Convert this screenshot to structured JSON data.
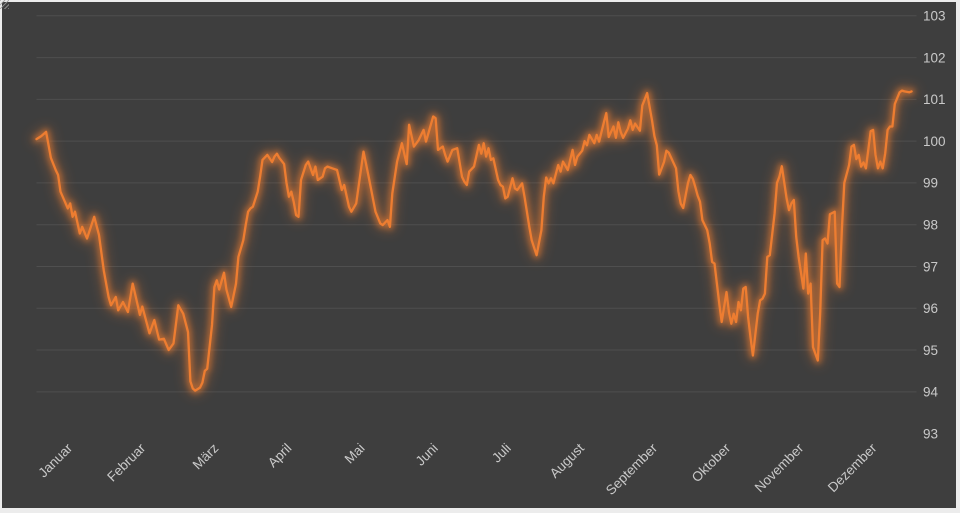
{
  "window": {
    "bezel_color": "#ECECEC",
    "background": "#3E3E3E"
  },
  "style": {
    "gridline_color": "rgba(255,255,255,0.09)",
    "axis_text_color": "#C9C9C9",
    "axis_font_size": 13.5,
    "line_color": "#ED7D31",
    "glow_color": "#ED7D31"
  },
  "chart_data": {
    "type": "line",
    "title": "",
    "legend": false,
    "grid": true,
    "x_axis": {
      "categories": [
        "Januar",
        "Februar",
        "März",
        "April",
        "Mai",
        "Juni",
        "Juli",
        "August",
        "September",
        "Oktober",
        "November",
        "Dezember"
      ],
      "label_rotation_deg": -45
    },
    "y_axis": {
      "side": "right",
      "min": 93,
      "max": 103,
      "tick_step": 1,
      "tick_labels": [
        "93",
        "94",
        "95",
        "96",
        "97",
        "98",
        "99",
        "100",
        "101",
        "102",
        "103"
      ],
      "gridlines_at": [
        94,
        95,
        96,
        97,
        98,
        99,
        100,
        101,
        102,
        103
      ]
    },
    "x_unit": "day_of_year (0-364, Jan 1 = 0)",
    "series": [
      {
        "name": "",
        "color": "#ED7D31",
        "glow": true,
        "points": [
          [
            0,
            100.05
          ],
          [
            2,
            100.12
          ],
          [
            4,
            100.22
          ],
          [
            6,
            99.6
          ],
          [
            8,
            99.31
          ],
          [
            9,
            99.19
          ],
          [
            10,
            98.79
          ],
          [
            13,
            98.39
          ],
          [
            14,
            98.51
          ],
          [
            15,
            98.19
          ],
          [
            16,
            98.31
          ],
          [
            18,
            97.79
          ],
          [
            19,
            97.95
          ],
          [
            21,
            97.67
          ],
          [
            24,
            98.19
          ],
          [
            26,
            97.75
          ],
          [
            28,
            96.9
          ],
          [
            30,
            96.27
          ],
          [
            31,
            96.07
          ],
          [
            33,
            96.27
          ],
          [
            34,
            95.95
          ],
          [
            36,
            96.15
          ],
          [
            38,
            95.91
          ],
          [
            40,
            96.59
          ],
          [
            43,
            95.84
          ],
          [
            44,
            96.04
          ],
          [
            47,
            95.4
          ],
          [
            49,
            95.72
          ],
          [
            51,
            95.25
          ],
          [
            53,
            95.27
          ],
          [
            55,
            95.0
          ],
          [
            57,
            95.16
          ],
          [
            59,
            96.07
          ],
          [
            61,
            95.87
          ],
          [
            63,
            95.43
          ],
          [
            64,
            94.25
          ],
          [
            65,
            94.08
          ],
          [
            66,
            94.03
          ],
          [
            68,
            94.1
          ],
          [
            69,
            94.22
          ],
          [
            70,
            94.5
          ],
          [
            71,
            94.55
          ],
          [
            73,
            95.6
          ],
          [
            74,
            96.51
          ],
          [
            75,
            96.67
          ],
          [
            76,
            96.45
          ],
          [
            78,
            96.85
          ],
          [
            79,
            96.45
          ],
          [
            81,
            96.03
          ],
          [
            83,
            96.59
          ],
          [
            84,
            97.23
          ],
          [
            86,
            97.63
          ],
          [
            87,
            97.99
          ],
          [
            88,
            98.31
          ],
          [
            89,
            98.39
          ],
          [
            90,
            98.43
          ],
          [
            92,
            98.79
          ],
          [
            93,
            99.15
          ],
          [
            94,
            99.55
          ],
          [
            96,
            99.67
          ],
          [
            98,
            99.5
          ],
          [
            99,
            99.63
          ],
          [
            100,
            99.7
          ],
          [
            101,
            99.6
          ],
          [
            103,
            99.45
          ],
          [
            104,
            99.0
          ],
          [
            105,
            98.67
          ],
          [
            106,
            98.79
          ],
          [
            107,
            98.55
          ],
          [
            108,
            98.23
          ],
          [
            109,
            98.19
          ],
          [
            110,
            99.07
          ],
          [
            112,
            99.43
          ],
          [
            113,
            99.51
          ],
          [
            115,
            99.19
          ],
          [
            116,
            99.39
          ],
          [
            117,
            99.07
          ],
          [
            119,
            99.15
          ],
          [
            120,
            99.35
          ],
          [
            121,
            99.39
          ],
          [
            123,
            99.35
          ],
          [
            125,
            99.31
          ],
          [
            127,
            98.83
          ],
          [
            128,
            98.95
          ],
          [
            130,
            98.43
          ],
          [
            131,
            98.31
          ],
          [
            133,
            98.51
          ],
          [
            136,
            99.75
          ],
          [
            138,
            99.19
          ],
          [
            141,
            98.31
          ],
          [
            143,
            98.03
          ],
          [
            144,
            97.99
          ],
          [
            146,
            98.11
          ],
          [
            147,
            97.95
          ],
          [
            148,
            98.75
          ],
          [
            150,
            99.51
          ],
          [
            152,
            99.95
          ],
          [
            153,
            99.7
          ],
          [
            154,
            99.45
          ],
          [
            155,
            100.39
          ],
          [
            157,
            99.87
          ],
          [
            159,
            100.03
          ],
          [
            161,
            100.27
          ],
          [
            162,
            99.99
          ],
          [
            165,
            100.59
          ],
          [
            166,
            100.55
          ],
          [
            167,
            99.79
          ],
          [
            169,
            99.87
          ],
          [
            170,
            99.67
          ],
          [
            171,
            99.51
          ],
          [
            173,
            99.79
          ],
          [
            175,
            99.83
          ],
          [
            177,
            99.15
          ],
          [
            178,
            99.03
          ],
          [
            179,
            98.95
          ],
          [
            180,
            99.27
          ],
          [
            182,
            99.39
          ],
          [
            184,
            99.91
          ],
          [
            185,
            99.7
          ],
          [
            186,
            99.95
          ],
          [
            187,
            99.63
          ],
          [
            188,
            99.83
          ],
          [
            189,
            99.55
          ],
          [
            190,
            99.59
          ],
          [
            192,
            99.07
          ],
          [
            193,
            98.95
          ],
          [
            194,
            98.91
          ],
          [
            195,
            98.63
          ],
          [
            196,
            98.67
          ],
          [
            198,
            99.11
          ],
          [
            199,
            98.87
          ],
          [
            200,
            98.83
          ],
          [
            202,
            98.99
          ],
          [
            203,
            98.67
          ],
          [
            205,
            97.95
          ],
          [
            206,
            97.63
          ],
          [
            208,
            97.27
          ],
          [
            210,
            97.87
          ],
          [
            211,
            98.67
          ],
          [
            212,
            99.13
          ],
          [
            213,
            98.99
          ],
          [
            214,
            99.11
          ],
          [
            215,
            98.99
          ],
          [
            217,
            99.43
          ],
          [
            218,
            99.27
          ],
          [
            219,
            99.51
          ],
          [
            221,
            99.31
          ],
          [
            222,
            99.55
          ],
          [
            223,
            99.79
          ],
          [
            224,
            99.43
          ],
          [
            225,
            99.63
          ],
          [
            227,
            99.77
          ],
          [
            228,
            100.0
          ],
          [
            229,
            99.9
          ],
          [
            230,
            100.15
          ],
          [
            232,
            99.95
          ],
          [
            233,
            100.15
          ],
          [
            234,
            99.99
          ],
          [
            236,
            100.45
          ],
          [
            237,
            100.67
          ],
          [
            238,
            100.1
          ],
          [
            240,
            100.35
          ],
          [
            241,
            100.08
          ],
          [
            242,
            100.45
          ],
          [
            243,
            100.22
          ],
          [
            244,
            100.08
          ],
          [
            246,
            100.3
          ],
          [
            247,
            100.5
          ],
          [
            248,
            100.27
          ],
          [
            249,
            100.42
          ],
          [
            251,
            100.25
          ],
          [
            252,
            100.85
          ],
          [
            253,
            101.0
          ],
          [
            254,
            101.15
          ],
          [
            256,
            100.5
          ],
          [
            257,
            100.12
          ],
          [
            258,
            99.9
          ],
          [
            259,
            99.2
          ],
          [
            261,
            99.5
          ],
          [
            262,
            99.77
          ],
          [
            263,
            99.72
          ],
          [
            264,
            99.6
          ],
          [
            266,
            99.35
          ],
          [
            267,
            98.8
          ],
          [
            268,
            98.5
          ],
          [
            269,
            98.4
          ],
          [
            271,
            99.0
          ],
          [
            272,
            99.19
          ],
          [
            273,
            99.1
          ],
          [
            274,
            98.91
          ],
          [
            275,
            98.7
          ],
          [
            276,
            98.55
          ],
          [
            277,
            98.11
          ],
          [
            279,
            97.87
          ],
          [
            280,
            97.55
          ],
          [
            281,
            97.11
          ],
          [
            282,
            97.07
          ],
          [
            283,
            96.59
          ],
          [
            284,
            96.11
          ],
          [
            285,
            95.67
          ],
          [
            287,
            96.39
          ],
          [
            288,
            95.91
          ],
          [
            289,
            95.63
          ],
          [
            290,
            95.87
          ],
          [
            291,
            95.67
          ],
          [
            292,
            96.15
          ],
          [
            293,
            95.95
          ],
          [
            294,
            96.47
          ],
          [
            295,
            96.51
          ],
          [
            296,
            95.79
          ],
          [
            297,
            95.31
          ],
          [
            298,
            94.87
          ],
          [
            300,
            95.87
          ],
          [
            301,
            96.19
          ],
          [
            302,
            96.23
          ],
          [
            303,
            96.35
          ],
          [
            304,
            97.23
          ],
          [
            305,
            97.27
          ],
          [
            307,
            98.27
          ],
          [
            308,
            99.0
          ],
          [
            309,
            99.15
          ],
          [
            310,
            99.4
          ],
          [
            312,
            98.63
          ],
          [
            313,
            98.35
          ],
          [
            314,
            98.51
          ],
          [
            315,
            98.59
          ],
          [
            316,
            97.71
          ],
          [
            317,
            97.23
          ],
          [
            319,
            96.47
          ],
          [
            320,
            97.31
          ],
          [
            321,
            96.35
          ],
          [
            322,
            96.59
          ],
          [
            323,
            95.07
          ],
          [
            325,
            94.75
          ],
          [
            326,
            95.9
          ],
          [
            327,
            97.63
          ],
          [
            328,
            97.67
          ],
          [
            329,
            97.55
          ],
          [
            330,
            98.25
          ],
          [
            332,
            98.31
          ],
          [
            333,
            96.59
          ],
          [
            334,
            96.51
          ],
          [
            335,
            97.91
          ],
          [
            336,
            99.0
          ],
          [
            338,
            99.43
          ],
          [
            339,
            99.87
          ],
          [
            340,
            99.91
          ],
          [
            341,
            99.57
          ],
          [
            342,
            99.67
          ],
          [
            343,
            99.39
          ],
          [
            344,
            99.49
          ],
          [
            345,
            99.35
          ],
          [
            347,
            100.24
          ],
          [
            348,
            100.27
          ],
          [
            349,
            99.67
          ],
          [
            350,
            99.35
          ],
          [
            351,
            99.51
          ],
          [
            352,
            99.35
          ],
          [
            353,
            99.71
          ],
          [
            354,
            100.27
          ],
          [
            355,
            100.35
          ],
          [
            356,
            100.35
          ],
          [
            357,
            100.89
          ],
          [
            359,
            101.17
          ],
          [
            360,
            101.21
          ],
          [
            361,
            101.19
          ],
          [
            363,
            101.17
          ],
          [
            364,
            101.19
          ]
        ]
      }
    ]
  }
}
